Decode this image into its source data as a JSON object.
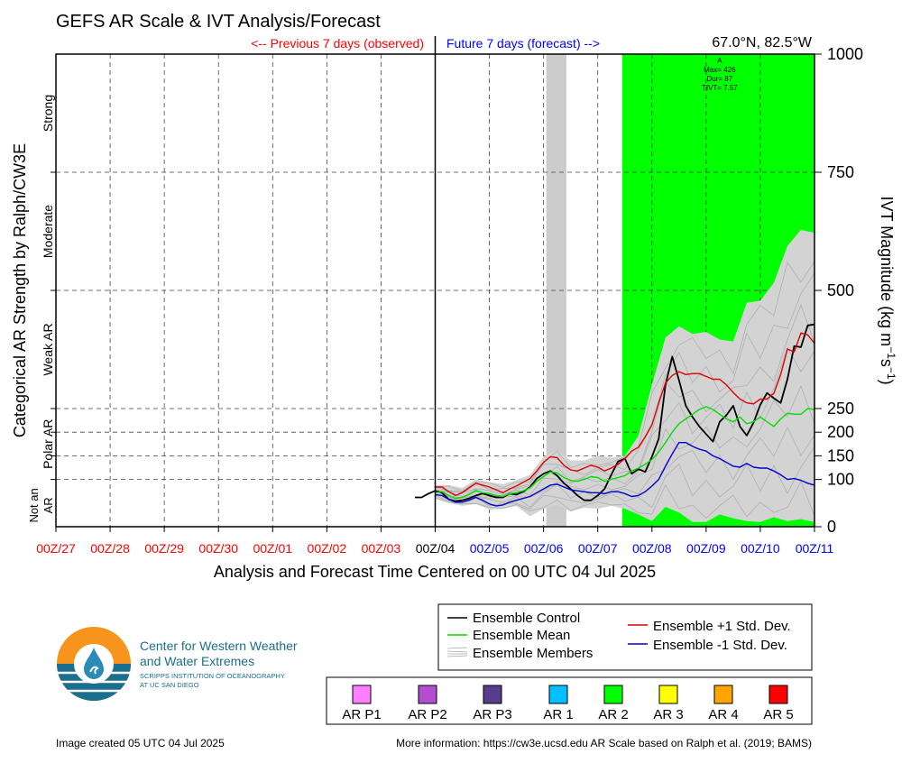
{
  "header": {
    "title": "GEFS AR Scale & IVT Analysis/Forecast",
    "observed_label": "<-- Previous 7 days (observed)",
    "forecast_label": "Future 7 days (forecast) -->",
    "location": "67.0°N, 82.5°W"
  },
  "colors": {
    "observed": "#ff0000",
    "forecast": "#0000ff",
    "ar2_fill": "#00ff00",
    "control": "#000000",
    "mean": "#00dd00",
    "plus_sd": "#e00000",
    "minus_sd": "#0000cc",
    "members": "#aaaaaa",
    "spread_fill": "#d3d3d3",
    "gap_fill": "#cccccc"
  },
  "event_annotation": [
    "A",
    "Max= 426",
    "Dur= 87",
    "TIVT= 7.57"
  ],
  "left_axis": {
    "title": "Categorical AR Strength by Ralph/CW3E",
    "categories": [
      {
        "label": "Strong",
        "y_center": 875
      },
      {
        "label": "Moderate",
        "y_center": 625
      },
      {
        "label": "Weak AR",
        "y_center": 375
      },
      {
        "label": "Polar AR",
        "y_center": 175
      }
    ],
    "not_an_ar": [
      "Not an",
      "AR"
    ]
  },
  "footer": {
    "created": "Image created 05 UTC 04 Jul 2025",
    "more_info": "More information: https://cw3e.ucsd.edu AR Scale based on Ralph et al. (2019; BAMS)"
  },
  "logo": {
    "line1": "Center for Western Weather",
    "line2": "and Water Extremes",
    "line3": "SCRIPPS INSTITUTION OF OCEANOGRAPHY",
    "line4": "AT UC SAN DIEGO"
  },
  "legend": [
    {
      "label": "Ensemble Control",
      "color": "#000000"
    },
    {
      "label": "Ensemble Mean",
      "color": "#00dd00"
    },
    {
      "label": "Ensemble Members",
      "color": "#aaaaaa"
    },
    {
      "label": "Ensemble +1 Std. Dev.",
      "color": "#e00000"
    },
    {
      "label": "Ensemble -1 Std. Dev.",
      "color": "#0000cc"
    }
  ],
  "ar_scale": [
    {
      "label": "AR P1",
      "color": "#ff80ff"
    },
    {
      "label": "AR P2",
      "color": "#b050d0"
    },
    {
      "label": "AR P3",
      "color": "#5a3c8c"
    },
    {
      "label": "AR 1",
      "color": "#00c0ff"
    },
    {
      "label": "AR 2",
      "color": "#00ff00"
    },
    {
      "label": "AR 3",
      "color": "#ffff00"
    },
    {
      "label": "AR 4",
      "color": "#ffa500"
    },
    {
      "label": "AR 5",
      "color": "#ff0000"
    }
  ],
  "chart_data": {
    "type": "line",
    "title": "GEFS AR Scale & IVT Analysis/Forecast",
    "xlabel": "Analysis and Forecast Time Centered on 00 UTC 04 Jul 2025",
    "ylabel": "IVT Magnitude (kg m^-1 s^-1)",
    "ylim": [
      0,
      1000
    ],
    "xlim": [
      0,
      14
    ],
    "x_unit": "days from 00Z/27",
    "xticks": [
      {
        "x": 0,
        "label": "00Z/27",
        "period": "observed"
      },
      {
        "x": 1,
        "label": "00Z/28",
        "period": "observed"
      },
      {
        "x": 2,
        "label": "00Z/29",
        "period": "observed"
      },
      {
        "x": 3,
        "label": "00Z/30",
        "period": "observed"
      },
      {
        "x": 4,
        "label": "00Z/01",
        "period": "observed"
      },
      {
        "x": 5,
        "label": "00Z/02",
        "period": "observed"
      },
      {
        "x": 6,
        "label": "00Z/03",
        "period": "observed"
      },
      {
        "x": 7,
        "label": "00Z/04",
        "period": "now"
      },
      {
        "x": 8,
        "label": "00Z/05",
        "period": "forecast"
      },
      {
        "x": 9,
        "label": "00Z/06",
        "period": "forecast"
      },
      {
        "x": 10,
        "label": "00Z/07",
        "period": "forecast"
      },
      {
        "x": 11,
        "label": "00Z/08",
        "period": "forecast"
      },
      {
        "x": 12,
        "label": "00Z/09",
        "period": "forecast"
      },
      {
        "x": 13,
        "label": "00Z/10",
        "period": "forecast"
      },
      {
        "x": 14,
        "label": "00Z/11",
        "period": "forecast"
      }
    ],
    "yticks": [
      0,
      100,
      150,
      200,
      250,
      500,
      750,
      1000
    ],
    "now_x": 7,
    "ar_shading": {
      "x_start": 10.45,
      "x_end": 14,
      "category": "AR 2"
    },
    "missing_data_band": {
      "x_start": 9.05,
      "x_end": 9.42
    },
    "series": [
      {
        "name": "Ensemble Control",
        "color": "#000000",
        "x": [
          6.625,
          6.75,
          6.875,
          7.0,
          7.125,
          7.25,
          7.375,
          7.5,
          7.625,
          7.75,
          7.875,
          8.0,
          8.125,
          8.25,
          8.375,
          8.5,
          8.625,
          8.75,
          8.875,
          9.0,
          9.125,
          9.25,
          9.375,
          9.5,
          9.625,
          9.75,
          9.875,
          10.0,
          10.125,
          10.25,
          10.375,
          10.5,
          10.625,
          10.75,
          10.875,
          11.0,
          11.125,
          11.25,
          11.375,
          11.5,
          11.625,
          11.75,
          11.875,
          12.0,
          12.125,
          12.25,
          12.375,
          12.5,
          12.625,
          12.75,
          12.875,
          13.0,
          13.125,
          13.25,
          13.375,
          13.5,
          13.625,
          13.75,
          13.875,
          14.0
        ],
        "values": [
          62,
          62,
          70,
          76,
          72,
          58,
          54,
          56,
          60,
          66,
          70,
          66,
          62,
          62,
          70,
          68,
          74,
          84,
          102,
          112,
          118,
          108,
          92,
          80,
          66,
          56,
          56,
          66,
          80,
          110,
          138,
          144,
          112,
          122,
          116,
          148,
          186,
          300,
          360,
          310,
          256,
          232,
          212,
          196,
          180,
          222,
          236,
          256,
          212,
          193,
          220,
          258,
          283,
          272,
          262,
          312,
          382,
          380,
          426,
          428
        ]
      },
      {
        "name": "Ensemble Mean",
        "color": "#00dd00",
        "x": [
          7.0,
          7.125,
          7.25,
          7.375,
          7.5,
          7.625,
          7.75,
          7.875,
          8.0,
          8.125,
          8.25,
          8.375,
          8.5,
          8.625,
          8.75,
          8.875,
          9.0,
          9.125,
          9.25,
          9.375,
          9.5,
          9.625,
          9.75,
          9.875,
          10.0,
          10.125,
          10.25,
          10.375,
          10.5,
          10.625,
          10.75,
          10.875,
          11.0,
          11.125,
          11.25,
          11.375,
          11.5,
          11.625,
          11.75,
          11.875,
          12.0,
          12.125,
          12.25,
          12.375,
          12.5,
          12.625,
          12.75,
          12.875,
          13.0,
          13.125,
          13.25,
          13.375,
          13.5,
          13.625,
          13.75,
          13.875,
          14.0
        ],
        "values": [
          72,
          74,
          66,
          60,
          62,
          68,
          76,
          72,
          70,
          66,
          64,
          70,
          72,
          76,
          82,
          96,
          106,
          116,
          114,
          104,
          98,
          96,
          100,
          106,
          104,
          96,
          100,
          104,
          108,
          118,
          124,
          132,
          142,
          158,
          178,
          200,
          218,
          228,
          238,
          248,
          254,
          248,
          238,
          228,
          222,
          232,
          218,
          222,
          232,
          222,
          212,
          228,
          240,
          238,
          238,
          250,
          248
        ]
      },
      {
        "name": "Ensemble +1 Std. Dev.",
        "color": "#e00000",
        "x": [
          7.0,
          7.125,
          7.25,
          7.375,
          7.5,
          7.625,
          7.75,
          7.875,
          8.0,
          8.125,
          8.25,
          8.375,
          8.5,
          8.625,
          8.75,
          8.875,
          9.0,
          9.125,
          9.25,
          9.375,
          9.5,
          9.625,
          9.75,
          9.875,
          10.0,
          10.125,
          10.25,
          10.375,
          10.5,
          10.625,
          10.75,
          10.875,
          11.0,
          11.125,
          11.25,
          11.375,
          11.5,
          11.625,
          11.75,
          11.875,
          12.0,
          12.125,
          12.25,
          12.375,
          12.5,
          12.625,
          12.75,
          12.875,
          13.0,
          13.125,
          13.25,
          13.375,
          13.5,
          13.625,
          13.75,
          13.875,
          14.0
        ],
        "values": [
          84,
          84,
          74,
          66,
          72,
          82,
          92,
          88,
          84,
          78,
          72,
          80,
          86,
          94,
          102,
          118,
          136,
          148,
          146,
          130,
          120,
          118,
          124,
          130,
          126,
          118,
          124,
          132,
          144,
          160,
          168,
          190,
          216,
          262,
          304,
          320,
          328,
          322,
          324,
          324,
          318,
          312,
          312,
          300,
          284,
          270,
          262,
          260,
          270,
          270,
          282,
          322,
          376,
          370,
          410,
          406,
          388
        ]
      },
      {
        "name": "Ensemble -1 Std. Dev.",
        "color": "#0000cc",
        "x": [
          7.0,
          7.125,
          7.25,
          7.375,
          7.5,
          7.625,
          7.75,
          7.875,
          8.0,
          8.125,
          8.25,
          8.375,
          8.5,
          8.625,
          8.75,
          8.875,
          9.0,
          9.125,
          9.25,
          9.375,
          9.5,
          9.625,
          9.75,
          9.875,
          10.0,
          10.125,
          10.25,
          10.375,
          10.5,
          10.625,
          10.75,
          10.875,
          11.0,
          11.125,
          11.25,
          11.375,
          11.5,
          11.625,
          11.75,
          11.875,
          12.0,
          12.125,
          12.25,
          12.375,
          12.5,
          12.625,
          12.75,
          12.875,
          13.0,
          13.125,
          13.25,
          13.375,
          13.5,
          13.625,
          13.75,
          13.875,
          14.0
        ],
        "values": [
          68,
          66,
          58,
          52,
          52,
          56,
          62,
          56,
          48,
          44,
          46,
          52,
          56,
          60,
          64,
          72,
          80,
          88,
          90,
          84,
          78,
          76,
          74,
          72,
          72,
          70,
          74,
          74,
          70,
          64,
          66,
          74,
          86,
          100,
          128,
          154,
          178,
          178,
          170,
          164,
          160,
          150,
          144,
          136,
          128,
          126,
          134,
          126,
          124,
          124,
          118,
          110,
          100,
          102,
          98,
          92,
          88
        ]
      }
    ],
    "member_envelope": {
      "name": "Ensemble Members",
      "x": [
        7.0,
        7.25,
        7.5,
        7.75,
        8.0,
        8.25,
        8.5,
        8.75,
        9.0,
        9.25,
        9.5,
        9.75,
        10.0,
        10.25,
        10.5,
        10.75,
        11.0,
        11.25,
        11.5,
        11.75,
        12.0,
        12.25,
        12.5,
        12.75,
        13.0,
        13.25,
        13.5,
        13.75,
        14.0
      ],
      "upper": [
        88,
        88,
        82,
        100,
        94,
        90,
        98,
        110,
        148,
        162,
        140,
        140,
        150,
        146,
        150,
        192,
        300,
        400,
        424,
        408,
        412,
        396,
        392,
        474,
        478,
        516,
        594,
        628,
        622
      ],
      "lower": [
        60,
        50,
        44,
        48,
        36,
        38,
        44,
        22,
        38,
        46,
        32,
        40,
        38,
        44,
        38,
        26,
        12,
        42,
        30,
        10,
        10,
        26,
        18,
        12,
        10,
        20,
        12,
        16,
        10
      ]
    }
  }
}
